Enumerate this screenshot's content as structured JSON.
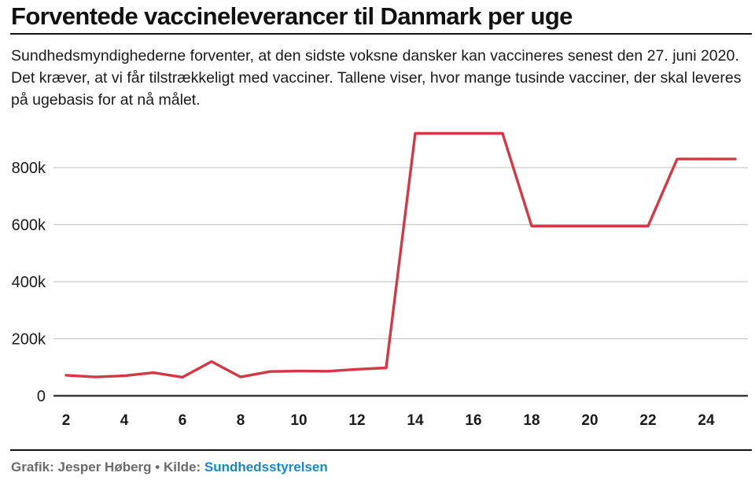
{
  "header": {
    "title": "Forventede vaccineleverancer til Danmark per uge",
    "subtitle": "Sundhedsmyndighederne forventer, at den sidste voksne dansker kan vaccineres senest den 27. juni 2020. Det kræver, at vi får tilstrækkeligt med vacciner. Tallene viser, hvor mange tusinde vacciner, der skal leveres på ugebasis for at nå målet."
  },
  "chart_data": {
    "type": "line",
    "x_label_implied": "uge (week number)",
    "unit": "doses (thousands, shown with k suffix)",
    "x": [
      2,
      3,
      4,
      5,
      6,
      7,
      8,
      9,
      10,
      11,
      12,
      13,
      14,
      15,
      16,
      17,
      18,
      19,
      20,
      21,
      22,
      23,
      24,
      25
    ],
    "values_k": [
      72,
      66,
      70,
      81,
      65,
      120,
      66,
      85,
      87,
      86,
      93,
      98,
      920,
      920,
      920,
      920,
      595,
      595,
      595,
      595,
      595,
      830,
      830,
      830
    ],
    "x_tick_labels": [
      "2",
      "4",
      "6",
      "8",
      "10",
      "12",
      "14",
      "16",
      "18",
      "20",
      "22",
      "24"
    ],
    "x_ticks": [
      2,
      4,
      6,
      8,
      10,
      12,
      14,
      16,
      18,
      20,
      22,
      24
    ],
    "y_ticks": [
      0,
      200,
      400,
      600,
      800
    ],
    "y_tick_labels": [
      "0",
      "200k",
      "400k",
      "600k",
      "800k"
    ],
    "ylim": [
      0,
      973
    ],
    "xlim": [
      2,
      25
    ],
    "grid": "horizontal",
    "legend": "none",
    "line_color": "#d23944",
    "gridline_color": "#c9c9c9",
    "axis_color": "#3a3a3a",
    "tick_label_color": "#1a1a1a"
  },
  "footer": {
    "credit_prefix": "Grafik: Jesper Høberg • Kilde: ",
    "source_label": "Sundhedsstyrelsen"
  }
}
